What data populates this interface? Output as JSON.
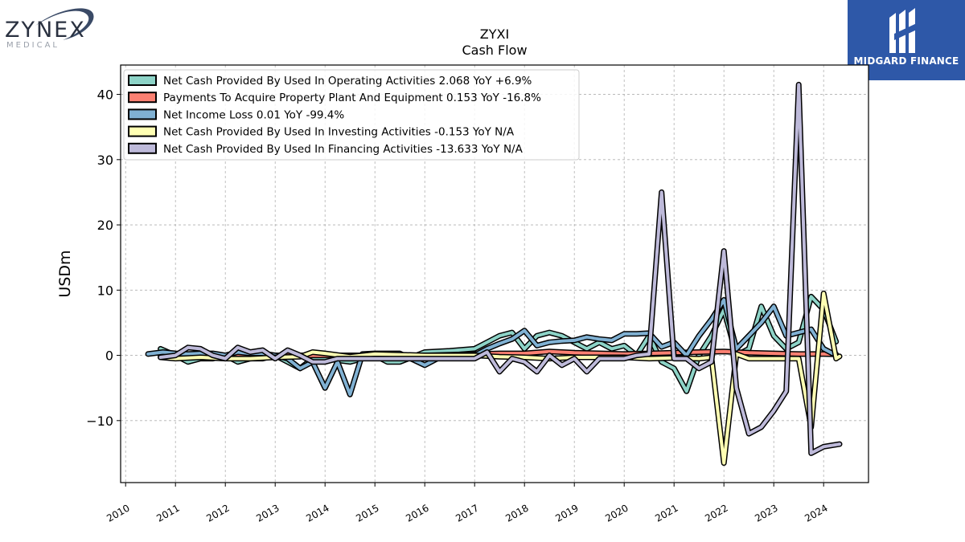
{
  "logos": {
    "left_word": "ZYNEX",
    "left_sub": "MEDICAL",
    "right_name": "MIDGARD FINANCE"
  },
  "chart_data": {
    "type": "line",
    "title": "ZYXI",
    "subtitle": "Cash Flow",
    "ylabel": "USDm",
    "xlabel": "",
    "xlim": [
      2009.9,
      2024.9
    ],
    "ylim": [
      -19.5,
      44.5
    ],
    "yticks": [
      -10,
      0,
      10,
      20,
      30,
      40
    ],
    "xticks": [
      "2010",
      "2011",
      "2012",
      "2013",
      "2014",
      "2015",
      "2016",
      "2017",
      "2018",
      "2019",
      "2020",
      "2021",
      "2022",
      "2023",
      "2024"
    ],
    "grid": true,
    "legend_position": "top-left",
    "series": [
      {
        "name": "Net Cash Provided By Used In Operating Activities  2.068 YoY +6.9%",
        "color": "#8dd3c7",
        "points": [
          [
            2010.7,
            1
          ],
          [
            2011.0,
            0
          ],
          [
            2011.25,
            -1
          ],
          [
            2011.5,
            -0.5
          ],
          [
            2011.75,
            -0.5
          ],
          [
            2012.0,
            0
          ],
          [
            2012.25,
            -1
          ],
          [
            2012.5,
            -0.5
          ],
          [
            2012.75,
            -0.5
          ],
          [
            2013.0,
            0
          ],
          [
            2013.25,
            -1
          ],
          [
            2013.5,
            -2
          ],
          [
            2013.75,
            -0.5
          ],
          [
            2014.0,
            -0.5
          ],
          [
            2014.5,
            -1
          ],
          [
            2015.0,
            0
          ],
          [
            2015.25,
            -1
          ],
          [
            2015.5,
            -1
          ],
          [
            2016.0,
            0.5
          ],
          [
            2016.5,
            0.7
          ],
          [
            2017.0,
            1
          ],
          [
            2017.25,
            2
          ],
          [
            2017.5,
            3
          ],
          [
            2017.75,
            3.5
          ],
          [
            2018.0,
            1
          ],
          [
            2018.25,
            3
          ],
          [
            2018.5,
            3.5
          ],
          [
            2018.75,
            3
          ],
          [
            2019.0,
            2
          ],
          [
            2019.25,
            1
          ],
          [
            2019.5,
            2
          ],
          [
            2019.75,
            1
          ],
          [
            2020.0,
            1.5
          ],
          [
            2020.25,
            0
          ],
          [
            2020.5,
            3
          ],
          [
            2020.75,
            -1
          ],
          [
            2021.0,
            -2
          ],
          [
            2021.25,
            -5.5
          ],
          [
            2021.5,
            0
          ],
          [
            2021.75,
            3
          ],
          [
            2022.0,
            7
          ],
          [
            2022.25,
            0
          ],
          [
            2022.5,
            1
          ],
          [
            2022.75,
            7.5
          ],
          [
            2023.0,
            3
          ],
          [
            2023.25,
            1
          ],
          [
            2023.5,
            2
          ],
          [
            2023.75,
            9
          ],
          [
            2024.0,
            7
          ],
          [
            2024.25,
            2.1
          ]
        ]
      },
      {
        "name": "Payments To Acquire Property Plant And Equipment  0.153 YoY -16.8%",
        "color": "#fb8072",
        "points": [
          [
            2010.7,
            0
          ],
          [
            2012.0,
            0
          ],
          [
            2014.0,
            0
          ],
          [
            2016.0,
            0
          ],
          [
            2017.5,
            0.3
          ],
          [
            2018.0,
            0.3
          ],
          [
            2018.5,
            0.6
          ],
          [
            2019.0,
            0.4
          ],
          [
            2020.0,
            0.2
          ],
          [
            2020.5,
            0.3
          ],
          [
            2021.0,
            0.4
          ],
          [
            2021.5,
            0.5
          ],
          [
            2022.0,
            0.6
          ],
          [
            2022.5,
            0.4
          ],
          [
            2023.0,
            0.3
          ],
          [
            2023.5,
            0.2
          ],
          [
            2024.0,
            0.2
          ],
          [
            2024.25,
            0.15
          ]
        ]
      },
      {
        "name": "Net Income Loss  0.01 YoY -99.4%",
        "color": "#80b1d3",
        "points": [
          [
            2010.45,
            0.2
          ],
          [
            2010.75,
            0.5
          ],
          [
            2011.0,
            0.3
          ],
          [
            2011.25,
            0.2
          ],
          [
            2011.5,
            0.3
          ],
          [
            2011.75,
            0.3
          ],
          [
            2012.0,
            0
          ],
          [
            2012.25,
            0.5
          ],
          [
            2012.5,
            0.3
          ],
          [
            2012.75,
            0.3
          ],
          [
            2013.0,
            0
          ],
          [
            2013.25,
            -0.5
          ],
          [
            2013.5,
            -2
          ],
          [
            2013.75,
            -1
          ],
          [
            2014.0,
            -5
          ],
          [
            2014.25,
            -1
          ],
          [
            2014.5,
            -6
          ],
          [
            2014.75,
            0.2
          ],
          [
            2015.0,
            0.3
          ],
          [
            2015.5,
            0.3
          ],
          [
            2016.0,
            -1.5
          ],
          [
            2016.25,
            -0.5
          ],
          [
            2016.5,
            0
          ],
          [
            2017.0,
            0
          ],
          [
            2017.25,
            1
          ],
          [
            2017.5,
            1.8
          ],
          [
            2017.75,
            2.5
          ],
          [
            2018.0,
            3.8
          ],
          [
            2018.25,
            1.5
          ],
          [
            2018.5,
            2
          ],
          [
            2018.75,
            2.2
          ],
          [
            2019.0,
            2.3
          ],
          [
            2019.25,
            2.8
          ],
          [
            2019.5,
            2.5
          ],
          [
            2019.75,
            2.3
          ],
          [
            2020.0,
            3.3
          ],
          [
            2020.25,
            3.3
          ],
          [
            2020.5,
            3.4
          ],
          [
            2020.75,
            1.3
          ],
          [
            2021.0,
            2
          ],
          [
            2021.25,
            0
          ],
          [
            2021.5,
            3
          ],
          [
            2021.75,
            5.5
          ],
          [
            2022.0,
            8.5
          ],
          [
            2022.25,
            1
          ],
          [
            2022.5,
            3
          ],
          [
            2022.75,
            5
          ],
          [
            2023.0,
            7.5
          ],
          [
            2023.25,
            3
          ],
          [
            2023.5,
            3.5
          ],
          [
            2023.75,
            4
          ],
          [
            2024.0,
            1
          ],
          [
            2024.25,
            0.01
          ]
        ]
      },
      {
        "name": "Net Cash Provided By Used In Investing Activities  -0.153 YoY N/A",
        "color": "#ffffb3",
        "points": [
          [
            2010.7,
            -0.3
          ],
          [
            2011.0,
            -0.5
          ],
          [
            2011.5,
            -0.3
          ],
          [
            2012.0,
            -0.5
          ],
          [
            2012.5,
            -0.5
          ],
          [
            2013.0,
            -0.3
          ],
          [
            2013.5,
            -0.2
          ],
          [
            2013.75,
            0.5
          ],
          [
            2014.0,
            0.3
          ],
          [
            2014.5,
            -0.2
          ],
          [
            2015.0,
            0.2
          ],
          [
            2016.0,
            0
          ],
          [
            2017.0,
            0
          ],
          [
            2017.5,
            -0.2
          ],
          [
            2018.0,
            -0.3
          ],
          [
            2018.5,
            -0.5
          ],
          [
            2019.0,
            -0.3
          ],
          [
            2020.0,
            -0.3
          ],
          [
            2020.5,
            -0.5
          ],
          [
            2021.0,
            -0.4
          ],
          [
            2021.5,
            -0.5
          ],
          [
            2021.75,
            -0.3
          ],
          [
            2022.0,
            -16.5
          ],
          [
            2022.25,
            0.2
          ],
          [
            2022.5,
            -0.5
          ],
          [
            2022.75,
            -0.5
          ],
          [
            2023.0,
            -0.5
          ],
          [
            2023.25,
            -0.5
          ],
          [
            2023.5,
            -0.5
          ],
          [
            2023.75,
            -11
          ],
          [
            2024.0,
            9.5
          ],
          [
            2024.25,
            -0.5
          ],
          [
            2024.32,
            -0.15
          ]
        ]
      },
      {
        "name": "Net Cash Provided By Used In Financing Activities  -13.633 YoY N/A",
        "color": "#bebada",
        "points": [
          [
            2010.7,
            -0.3
          ],
          [
            2011.0,
            0
          ],
          [
            2011.25,
            1.2
          ],
          [
            2011.5,
            1
          ],
          [
            2011.75,
            0
          ],
          [
            2012.0,
            -0.5
          ],
          [
            2012.25,
            1.2
          ],
          [
            2012.5,
            0.5
          ],
          [
            2012.75,
            0.8
          ],
          [
            2013.0,
            -0.5
          ],
          [
            2013.25,
            0.8
          ],
          [
            2013.5,
            0
          ],
          [
            2013.75,
            -1
          ],
          [
            2014.0,
            -1
          ],
          [
            2014.25,
            -0.5
          ],
          [
            2014.5,
            -0.5
          ],
          [
            2015.0,
            -0.5
          ],
          [
            2016.0,
            -0.5
          ],
          [
            2017.0,
            -0.5
          ],
          [
            2017.25,
            0.5
          ],
          [
            2017.5,
            -2.5
          ],
          [
            2017.75,
            -0.5
          ],
          [
            2018.0,
            -1
          ],
          [
            2018.25,
            -2.5
          ],
          [
            2018.5,
            0
          ],
          [
            2018.75,
            -1.5
          ],
          [
            2019.0,
            -0.5
          ],
          [
            2019.25,
            -2.5
          ],
          [
            2019.5,
            -0.5
          ],
          [
            2020.0,
            -0.5
          ],
          [
            2020.25,
            0
          ],
          [
            2020.5,
            0.2
          ],
          [
            2020.75,
            25
          ],
          [
            2021.0,
            -0.5
          ],
          [
            2021.25,
            -0.5
          ],
          [
            2021.5,
            -2
          ],
          [
            2021.75,
            -1
          ],
          [
            2022.0,
            16
          ],
          [
            2022.25,
            -5
          ],
          [
            2022.5,
            -12
          ],
          [
            2022.75,
            -11
          ],
          [
            2023.0,
            -8.5
          ],
          [
            2023.25,
            -5.5
          ],
          [
            2023.5,
            41.5
          ],
          [
            2023.75,
            -15
          ],
          [
            2024.0,
            -14
          ],
          [
            2024.32,
            -13.6
          ]
        ]
      }
    ]
  }
}
